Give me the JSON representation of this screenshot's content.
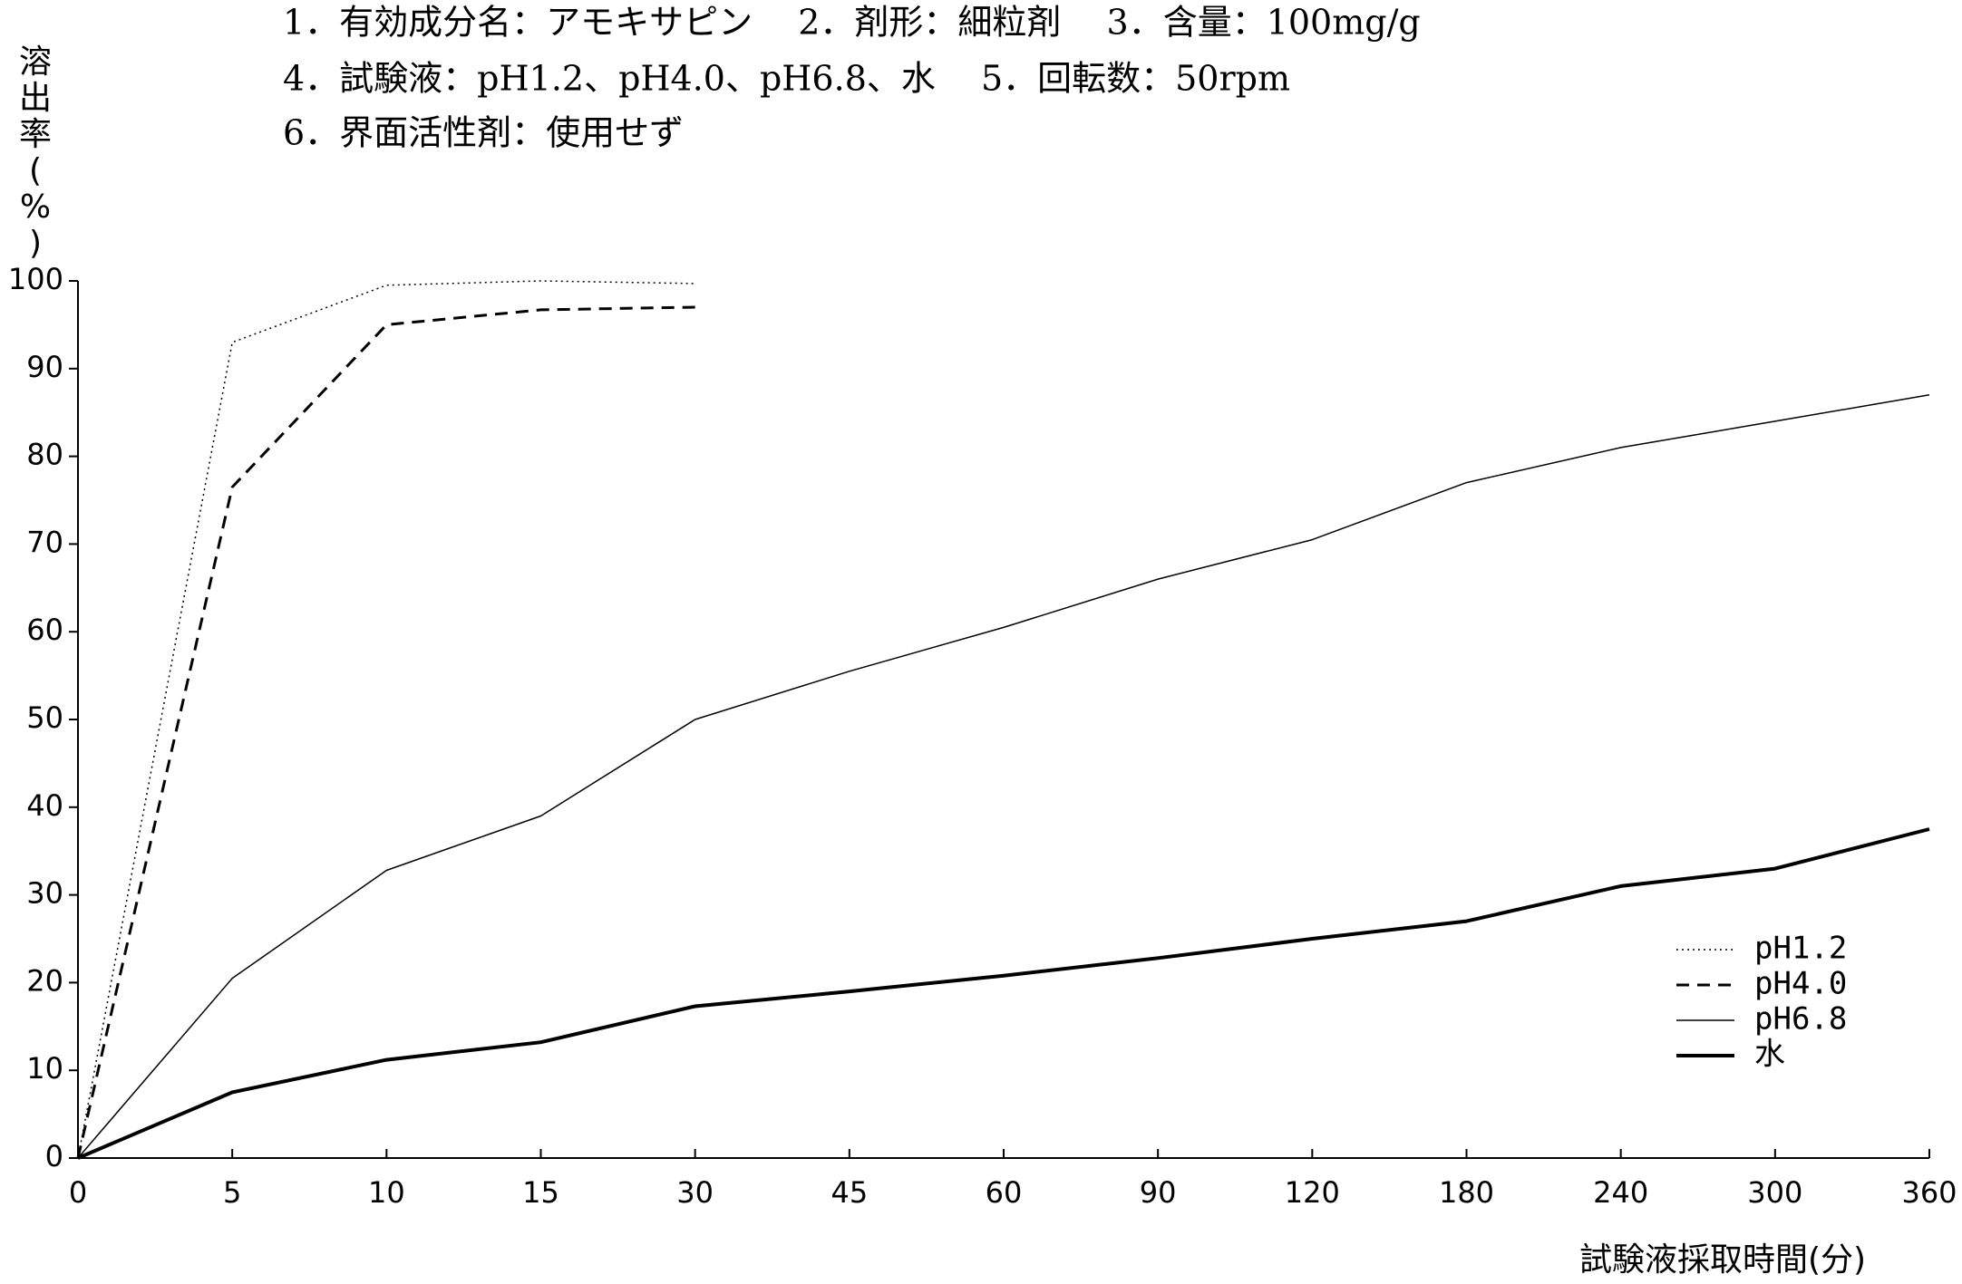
{
  "chart_data": {
    "type": "line",
    "header": [
      "1．有効成分名：アモキサピン　 2．剤形：細粒剤　 3．含量：100mg/g",
      "4．試験液：pH1.2、pH4.0、pH6.8、水　 5．回転数：50rpm",
      "6．界面活性剤：使用せず"
    ],
    "y_label": "溶出率(%)",
    "x_label": "試験液採取時間(分)",
    "categories": [
      "0",
      "5",
      "10",
      "15",
      "30",
      "45",
      "60",
      "90",
      "120",
      "180",
      "240",
      "300",
      "360"
    ],
    "series": [
      {
        "name": "pH1.2",
        "color": "#000000",
        "dash": "dotted",
        "width": 1.5,
        "values": [
          0,
          93,
          99.5,
          100,
          99.7,
          null,
          null,
          null,
          null,
          null,
          null,
          null,
          null
        ]
      },
      {
        "name": "pH4.0",
        "color": "#000000",
        "dash": "dashed",
        "width": 3,
        "values": [
          0,
          76.5,
          95,
          96.7,
          97,
          null,
          null,
          null,
          null,
          null,
          null,
          null,
          null
        ]
      },
      {
        "name": "pH6.8",
        "color": "#000000",
        "dash": "solid",
        "width": 1.5,
        "values": [
          0,
          20.5,
          32.8,
          39,
          50,
          55.5,
          60.5,
          66,
          70.5,
          77,
          81,
          84,
          87
        ]
      },
      {
        "name": "水",
        "color": "#000000",
        "dash": "solid",
        "width": 4,
        "values": [
          0,
          7.5,
          11.2,
          13.2,
          17.3,
          19,
          20.8,
          22.8,
          25,
          27,
          31,
          33,
          37.5
        ]
      }
    ],
    "ylim": [
      0,
      100
    ],
    "yticks": [
      0,
      10,
      20,
      30,
      40,
      50,
      60,
      70,
      80,
      90,
      100
    ],
    "grid": false,
    "legend": "lower right"
  }
}
